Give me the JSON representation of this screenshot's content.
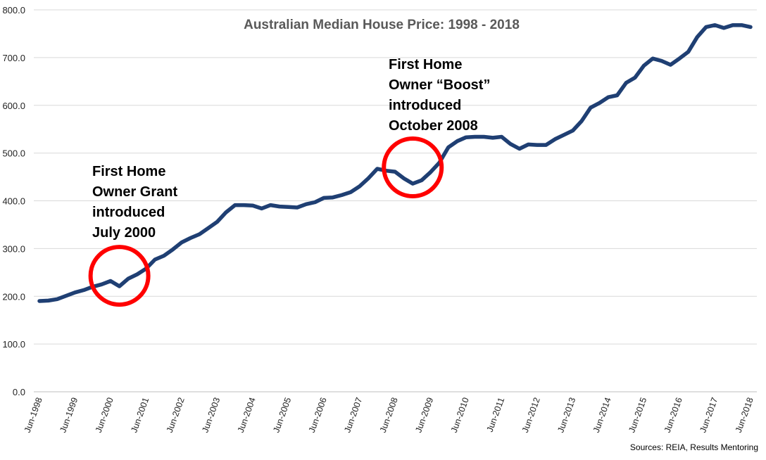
{
  "chart_data": {
    "type": "line",
    "title": "Australian Median House Price: 1998 - 2018",
    "source": "Sources: REIA, Results Mentoring",
    "ylim": [
      0,
      800
    ],
    "yticks": [
      "0.0",
      "100.0",
      "200.0",
      "300.0",
      "400.0",
      "500.0",
      "600.0",
      "700.0",
      "800.0"
    ],
    "xticks": [
      "Jun-1998",
      "Jun-1999",
      "Jun-2000",
      "Jun-2001",
      "Jun-2002",
      "Jun-2003",
      "Jun-2004",
      "Jun-2005",
      "Jun-2006",
      "Jun-2007",
      "Jun-2008",
      "Jun-2009",
      "Jun-2010",
      "Jun-2011",
      "Jun-2012",
      "Jun-2013",
      "Jun-2014",
      "Jun-2015",
      "Jun-2016",
      "Jun-2017",
      "Jun-2018"
    ],
    "grid": true,
    "legend": "none",
    "series_color": "#1f3f73",
    "highlight_color": "#ff0000",
    "series": [
      {
        "name": "",
        "x": [
          1998.5,
          1998.75,
          1999.0,
          1999.25,
          1999.5,
          1999.75,
          2000.0,
          2000.25,
          2000.5,
          2000.75,
          2001.0,
          2001.25,
          2001.5,
          2001.75,
          2002.0,
          2002.25,
          2002.5,
          2002.75,
          2003.0,
          2003.25,
          2003.5,
          2003.75,
          2004.0,
          2004.25,
          2004.5,
          2004.75,
          2005.0,
          2005.25,
          2005.5,
          2005.75,
          2006.0,
          2006.25,
          2006.5,
          2006.75,
          2007.0,
          2007.25,
          2007.5,
          2007.75,
          2008.0,
          2008.25,
          2008.5,
          2008.75,
          2009.0,
          2009.25,
          2009.5,
          2009.75,
          2010.0,
          2010.25,
          2010.5,
          2010.75,
          2011.0,
          2011.25,
          2011.5,
          2011.75,
          2012.0,
          2012.25,
          2012.5,
          2012.75,
          2013.0,
          2013.25,
          2013.5,
          2013.75,
          2014.0,
          2014.25,
          2014.5,
          2014.75,
          2015.0,
          2015.25,
          2015.5,
          2015.75,
          2016.0,
          2016.25,
          2016.5,
          2016.75,
          2017.0,
          2017.25,
          2017.5,
          2017.75,
          2018.0,
          2018.25,
          2018.5
        ],
        "values": [
          190,
          191,
          194,
          201,
          208,
          213,
          220,
          225,
          232,
          221,
          237,
          246,
          258,
          277,
          285,
          298,
          313,
          322,
          330,
          343,
          356,
          376,
          391,
          391,
          390,
          384,
          391,
          388,
          387,
          386,
          393,
          397,
          406,
          407,
          412,
          418,
          430,
          447,
          467,
          463,
          461,
          447,
          436,
          443,
          460,
          480,
          512,
          525,
          533,
          534,
          534,
          532,
          534,
          519,
          509,
          518,
          517,
          517,
          529,
          538,
          547,
          567,
          595,
          605,
          617,
          621,
          647,
          658,
          683,
          698,
          693,
          685,
          698,
          712,
          743,
          764,
          768,
          762,
          768,
          768,
          764
        ]
      }
    ],
    "annotations": [
      {
        "x": 2000.75,
        "y": 243,
        "lines": [
          "First Home",
          "Owner Grant",
          "introduced",
          "July 2000"
        ]
      },
      {
        "x": 2009.0,
        "y": 470,
        "lines": [
          "First Home",
          "Owner “Boost”",
          "introduced",
          "October 2008"
        ]
      }
    ]
  }
}
